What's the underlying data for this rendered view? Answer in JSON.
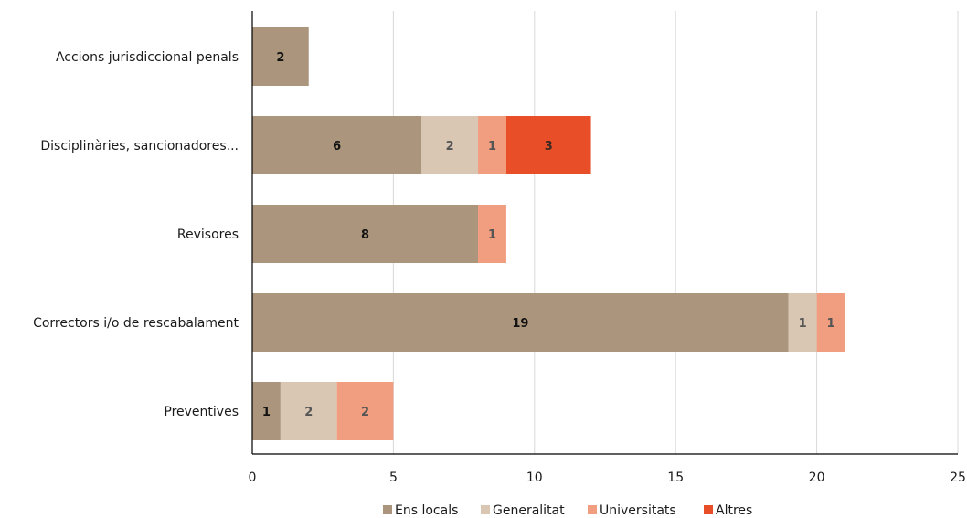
{
  "chart_data": {
    "type": "bar",
    "orientation": "horizontal",
    "stacked": true,
    "categories": [
      "Accions jurisdiccional penals",
      "Disciplinàries, sancionadores...",
      "Revisores",
      "Correctors i/o de rescabalament",
      "Preventives"
    ],
    "series": [
      {
        "name": "Ens locals",
        "color": "#ab967d",
        "label_color": "#111111",
        "values": [
          2,
          6,
          8,
          19,
          1
        ]
      },
      {
        "name": "Generalitat",
        "color": "#d9c7b4",
        "label_color": "#555555",
        "values": [
          0,
          2,
          0,
          1,
          2
        ]
      },
      {
        "name": "Universitats",
        "color": "#f19d7f",
        "label_color": "#555555",
        "values": [
          0,
          1,
          1,
          1,
          2
        ]
      },
      {
        "name": "Altres",
        "color": "#e84e27",
        "label_color": "#3a2a22",
        "values": [
          0,
          3,
          0,
          0,
          0
        ]
      }
    ],
    "xlim": [
      0,
      25
    ],
    "xticks": [
      0,
      5,
      10,
      15,
      20,
      25
    ],
    "grid": true,
    "legend_position": "bottom"
  }
}
